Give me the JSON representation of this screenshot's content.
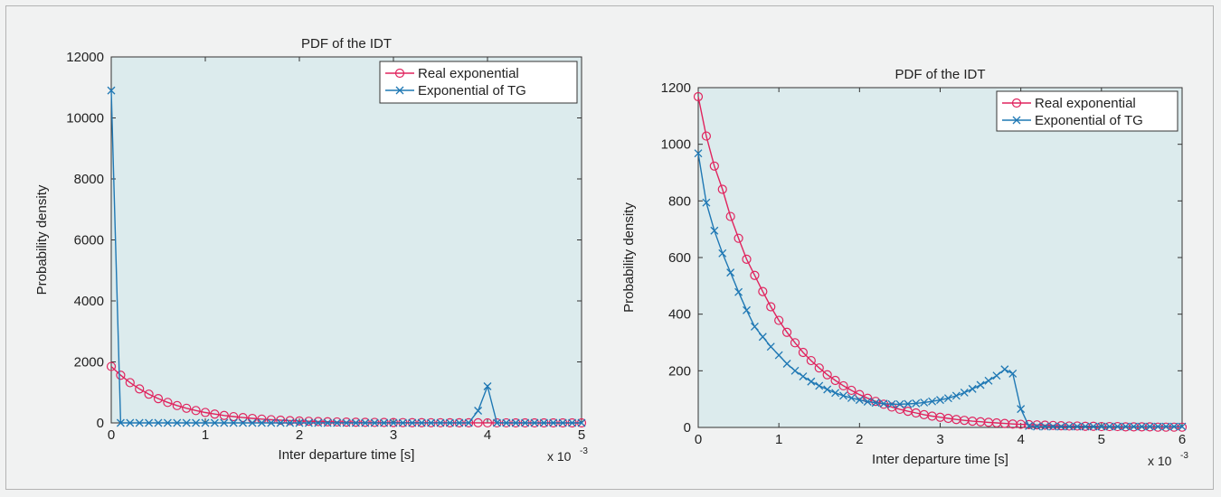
{
  "chart_data": [
    {
      "type": "line",
      "title": "PDF of the IDT",
      "xlabel": "Inter departure time [s]",
      "ylabel": "Probability density",
      "x_exponent_label": "x 10",
      "x_exponent_power": "-3",
      "xlim": [
        0,
        5
      ],
      "ylim": [
        0,
        12000
      ],
      "xticks": [
        0,
        1,
        2,
        3,
        4,
        5
      ],
      "yticks": [
        0,
        2000,
        4000,
        6000,
        8000,
        10000,
        12000
      ],
      "x_scale_factor": 0.001,
      "legend_position": "top-right",
      "grid": false,
      "colors": {
        "plot_bg": "#dcebed",
        "real": "#e0245e",
        "tg": "#1f78b4"
      },
      "series": [
        {
          "name": "Real exponential",
          "marker": "circle",
          "x": [
            0,
            0.1,
            0.2,
            0.3,
            0.4,
            0.5,
            0.6,
            0.7,
            0.8,
            0.9,
            1.0,
            1.1,
            1.2,
            1.3,
            1.4,
            1.5,
            1.6,
            1.7,
            1.8,
            1.9,
            2.0,
            2.1,
            2.2,
            2.3,
            2.4,
            2.5,
            2.6,
            2.7,
            2.8,
            2.9,
            3.0,
            3.1,
            3.2,
            3.3,
            3.4,
            3.5,
            3.6,
            3.7,
            3.8,
            3.9,
            4.0,
            4.1,
            4.2,
            4.3,
            4.4,
            4.5,
            4.6,
            4.7,
            4.8,
            4.9,
            5.0
          ],
          "y": [
            1850,
            1563,
            1320,
            1115,
            942,
            796,
            672,
            568,
            480,
            405,
            342,
            289,
            244,
            206,
            174,
            147,
            124,
            105,
            89,
            75,
            63,
            53,
            45,
            38,
            32,
            27,
            23,
            19,
            16,
            14,
            12,
            10,
            8,
            7,
            6,
            5,
            4,
            4,
            3,
            3,
            2,
            2,
            2,
            1,
            1,
            1,
            1,
            1,
            1,
            1,
            1
          ]
        },
        {
          "name": "Exponential of TG",
          "marker": "x",
          "x": [
            0,
            0.1,
            0.2,
            0.3,
            0.4,
            0.5,
            0.6,
            0.7,
            0.8,
            0.9,
            1.0,
            1.1,
            1.2,
            1.3,
            1.4,
            1.5,
            1.6,
            1.7,
            1.8,
            1.9,
            2.0,
            2.1,
            2.2,
            2.3,
            2.4,
            2.5,
            2.6,
            2.7,
            2.8,
            2.9,
            3.0,
            3.1,
            3.2,
            3.3,
            3.4,
            3.5,
            3.6,
            3.7,
            3.8,
            3.9,
            4.0,
            4.1,
            4.2,
            4.3,
            4.4,
            4.5,
            4.6,
            4.7,
            4.8,
            4.9,
            5.0
          ],
          "y": [
            10900,
            0,
            0,
            0,
            0,
            0,
            0,
            0,
            0,
            0,
            0,
            0,
            0,
            0,
            0,
            0,
            0,
            0,
            0,
            0,
            0,
            0,
            0,
            0,
            0,
            0,
            0,
            0,
            0,
            0,
            0,
            0,
            0,
            0,
            0,
            0,
            0,
            0,
            0,
            400,
            1200,
            0,
            0,
            0,
            0,
            0,
            0,
            0,
            0,
            0,
            0
          ]
        }
      ]
    },
    {
      "type": "line",
      "title": "PDF of the IDT",
      "xlabel": "Inter departure time [s]",
      "ylabel": "Probability density",
      "x_exponent_label": "x 10",
      "x_exponent_power": "-3",
      "xlim": [
        0,
        6
      ],
      "ylim": [
        0,
        1200
      ],
      "xticks": [
        0,
        1,
        2,
        3,
        4,
        5,
        6
      ],
      "yticks": [
        0,
        200,
        400,
        600,
        800,
        1000,
        1200
      ],
      "x_scale_factor": 0.001,
      "legend_position": "top-right",
      "grid": false,
      "colors": {
        "plot_bg": "#dcebed",
        "real": "#e0245e",
        "tg": "#1f78b4"
      },
      "series": [
        {
          "name": "Real exponential",
          "marker": "circle",
          "x": [
            0,
            0.1,
            0.2,
            0.3,
            0.4,
            0.5,
            0.6,
            0.7,
            0.8,
            0.9,
            1.0,
            1.1,
            1.2,
            1.3,
            1.4,
            1.5,
            1.6,
            1.7,
            1.8,
            1.9,
            2.0,
            2.1,
            2.2,
            2.3,
            2.4,
            2.5,
            2.6,
            2.7,
            2.8,
            2.9,
            3.0,
            3.1,
            3.2,
            3.3,
            3.4,
            3.5,
            3.6,
            3.7,
            3.8,
            3.9,
            4.0,
            4.1,
            4.2,
            4.3,
            4.4,
            4.5,
            4.6,
            4.7,
            4.8,
            4.9,
            5.0,
            5.1,
            5.2,
            5.3,
            5.4,
            5.5,
            5.6,
            5.7,
            5.8,
            5.9,
            6.0
          ],
          "y": [
            1168,
            1029,
            923,
            841,
            745,
            668,
            594,
            537,
            480,
            426,
            378,
            336,
            299,
            265,
            236,
            210,
            186,
            166,
            147,
            131,
            116,
            103,
            92,
            82,
            72,
            64,
            57,
            51,
            45,
            40,
            36,
            32,
            28,
            25,
            22,
            20,
            18,
            16,
            14,
            12,
            11,
            10,
            9,
            8,
            7,
            6,
            5,
            5,
            4,
            4,
            3,
            3,
            3,
            2,
            2,
            2,
            2,
            1,
            1,
            1,
            1
          ]
        },
        {
          "name": "Exponential of TG",
          "marker": "x",
          "x": [
            0,
            0.1,
            0.2,
            0.3,
            0.4,
            0.5,
            0.6,
            0.7,
            0.8,
            0.9,
            1.0,
            1.1,
            1.2,
            1.3,
            1.4,
            1.5,
            1.6,
            1.7,
            1.8,
            1.9,
            2.0,
            2.1,
            2.2,
            2.3,
            2.4,
            2.5,
            2.6,
            2.7,
            2.8,
            2.9,
            3.0,
            3.1,
            3.2,
            3.3,
            3.4,
            3.5,
            3.6,
            3.7,
            3.8,
            3.9,
            4.0,
            4.1,
            4.2,
            4.3,
            4.4,
            4.5,
            4.6,
            4.7,
            4.8,
            4.9,
            5.0,
            5.1,
            5.2,
            5.3,
            5.4,
            5.5,
            5.6,
            5.7,
            5.8,
            5.9,
            6.0
          ],
          "y": [
            968,
            794,
            695,
            615,
            547,
            478,
            414,
            356,
            320,
            285,
            255,
            225,
            200,
            180,
            162,
            147,
            134,
            122,
            112,
            104,
            97,
            91,
            87,
            84,
            82,
            82,
            83,
            85,
            88,
            92,
            97,
            103,
            112,
            123,
            136,
            150,
            165,
            183,
            205,
            190,
            65,
            5,
            3,
            3,
            3,
            3,
            3,
            3,
            3,
            3,
            3,
            3,
            3,
            3,
            3,
            3,
            3,
            3,
            3,
            3,
            3
          ]
        }
      ]
    }
  ]
}
